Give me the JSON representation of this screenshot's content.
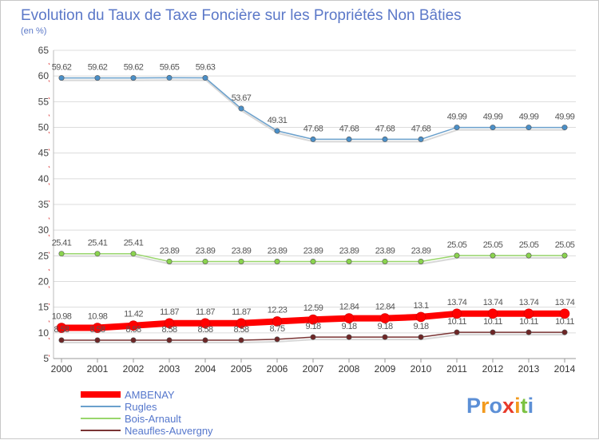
{
  "chart_data": {
    "type": "line",
    "title": "Evolution du Taux de Taxe Foncière sur les Propriétés Non Bâties",
    "subtitle": "(en %)",
    "xlabel": "",
    "ylabel": "",
    "ylim": [
      5,
      65
    ],
    "yticks": [
      5,
      10,
      15,
      20,
      25,
      30,
      35,
      40,
      45,
      50,
      55,
      60,
      65
    ],
    "grid": "horizontal",
    "legend_position": "bottom-left",
    "categories": [
      "2000",
      "2001",
      "2002",
      "2003",
      "2004",
      "2005",
      "2006",
      "2007",
      "2008",
      "2009",
      "2010",
      "2011",
      "2012",
      "2013",
      "2014"
    ],
    "series": [
      {
        "name": "AMBENAY",
        "color": "#ff0000",
        "values": [
          10.98,
          10.98,
          11.42,
          11.87,
          11.87,
          11.87,
          12.23,
          12.59,
          12.84,
          12.84,
          13.1,
          13.74,
          13.74,
          13.74,
          13.74
        ]
      },
      {
        "name": "Rugles",
        "color": "#6aa0cc",
        "values": [
          59.62,
          59.62,
          59.62,
          59.65,
          59.63,
          53.67,
          49.31,
          47.68,
          47.68,
          47.68,
          47.68,
          49.99,
          49.99,
          49.99,
          49.99
        ]
      },
      {
        "name": "Bois-Arnault",
        "color": "#99d66c",
        "values": [
          25.41,
          25.41,
          25.41,
          23.89,
          23.89,
          23.89,
          23.89,
          23.89,
          23.89,
          23.89,
          23.89,
          25.05,
          25.05,
          25.05,
          25.05
        ]
      },
      {
        "name": "Neaufles-Auvergny",
        "color": "#7a3434",
        "values": [
          8.58,
          8.58,
          8.58,
          8.58,
          8.58,
          8.58,
          8.75,
          9.18,
          9.18,
          9.18,
          9.18,
          10.11,
          10.11,
          10.11,
          10.11
        ]
      }
    ]
  },
  "brand": {
    "letters": [
      "P",
      "r",
      "o",
      "x",
      "i",
      "t",
      "i"
    ],
    "colors": [
      "#5c8fd6",
      "#f29a1e",
      "#5c8fd6",
      "#e83a2a",
      "#f29a1e",
      "#7cc242",
      "#5c8fd6"
    ]
  }
}
